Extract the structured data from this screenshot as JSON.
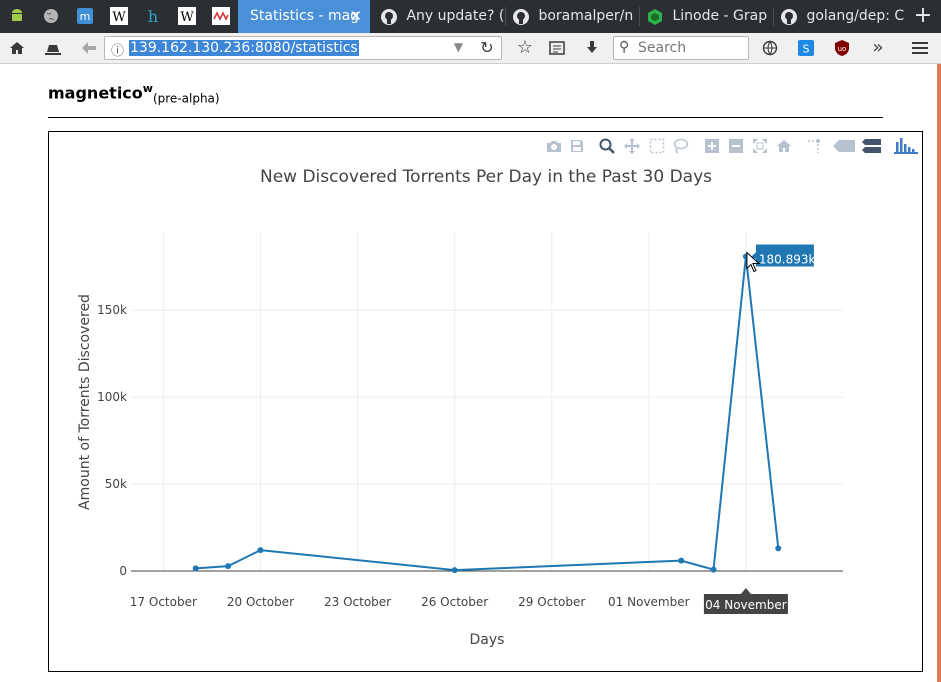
{
  "browser": {
    "tabs": [
      {
        "label": "",
        "icon": "android-icon"
      },
      {
        "label": "",
        "icon": "globe-icon"
      },
      {
        "label": "",
        "icon": "m-app-icon"
      },
      {
        "label": "",
        "icon": "wikipedia-icon"
      },
      {
        "label": "",
        "icon": "hm-icon"
      },
      {
        "label": "",
        "icon": "wikipedia-icon"
      },
      {
        "label": "",
        "icon": "mw-icon"
      },
      {
        "label": "Statistics - mag",
        "icon": "page-icon",
        "active": true
      },
      {
        "label": "Any update? (",
        "icon": "github-icon"
      },
      {
        "label": "boramalper/n",
        "icon": "github-icon"
      },
      {
        "label": "Linode - Grap",
        "icon": "linode-icon"
      },
      {
        "label": "golang/dep: C",
        "icon": "github-icon"
      }
    ],
    "new_tab": "+",
    "url": "139.162.130.236:8080/statistics",
    "search_placeholder": "Search"
  },
  "page": {
    "brand": "magnetico",
    "brand_sup": "w",
    "brand_sub": "(pre-alpha)"
  },
  "chart_data": {
    "type": "line",
    "title": "New Discovered Torrents Per Day in the Past 30 Days",
    "xlabel": "Days",
    "ylabel": "Amount of Torrents Discovered",
    "xlim": [
      "2017-10-16",
      "2017-11-07"
    ],
    "ylim": [
      0,
      195000
    ],
    "x_ticks": [
      {
        "date": "2017-10-17",
        "label": "17 October"
      },
      {
        "date": "2017-10-20",
        "label": "20 October"
      },
      {
        "date": "2017-10-23",
        "label": "23 October"
      },
      {
        "date": "2017-10-26",
        "label": "26 October"
      },
      {
        "date": "2017-10-29",
        "label": "29 October"
      },
      {
        "date": "2017-11-01",
        "label": "01 November"
      },
      {
        "date": "2017-11-04",
        "label": "04 November"
      }
    ],
    "y_ticks": [
      {
        "value": 0,
        "label": "0"
      },
      {
        "value": 50000,
        "label": "50k"
      },
      {
        "value": 100000,
        "label": "100k"
      },
      {
        "value": 150000,
        "label": "150k"
      }
    ],
    "series": [
      {
        "color": "#1f77b4",
        "x": [
          "2017-10-18",
          "2017-10-19",
          "2017-10-20",
          "2017-10-26",
          "2017-11-02",
          "2017-11-03",
          "2017-11-04",
          "2017-11-05"
        ],
        "y": [
          1500,
          2800,
          12000,
          500,
          6000,
          800,
          180893,
          13000
        ]
      }
    ],
    "grid": true,
    "hover": {
      "date": "2017-11-04",
      "value_label": "180.893k",
      "x_label": "04 November"
    }
  }
}
